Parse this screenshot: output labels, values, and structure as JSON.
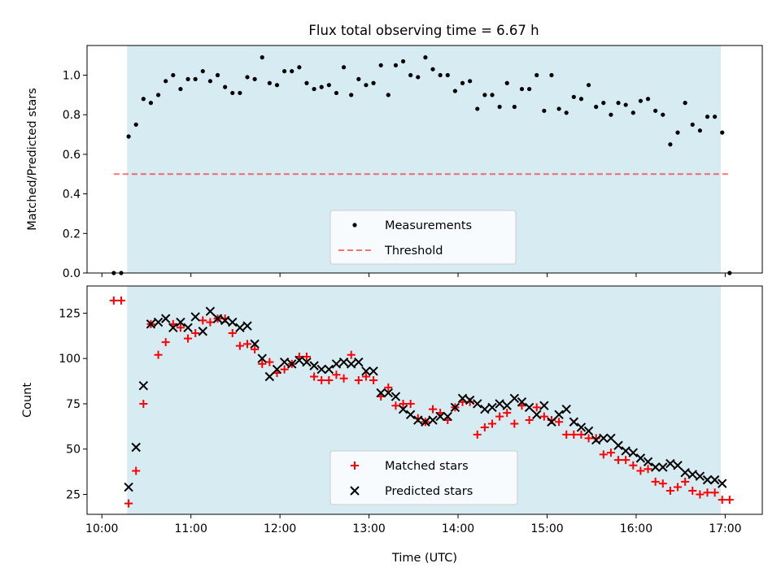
{
  "title": "Flux total observing time = 6.67 h",
  "colors": {
    "shade": "#add8e6",
    "threshold": "#ff0000",
    "matched": "#ff0000",
    "predicted": "#000000",
    "measurements": "#000000"
  },
  "chart_data": [
    {
      "type": "scatter",
      "ylabel": "Matched/Predicted stars",
      "ylim": [
        0,
        1.15
      ],
      "yticks": [
        0.0,
        0.2,
        0.4,
        0.6,
        0.8,
        1.0
      ],
      "ytick_labels": [
        "0.0",
        "0.2",
        "0.4",
        "0.6",
        "0.8",
        "1.0"
      ],
      "xlim": [
        "09:50",
        "17:25"
      ],
      "grid": false,
      "legend_position": "lower-center",
      "shaded_span": [
        "10:17",
        "16:57"
      ],
      "threshold": {
        "name": "Threshold",
        "y": 0.5,
        "x_range": [
          "10:08",
          "17:03"
        ],
        "style": "dashed"
      },
      "series": [
        {
          "name": "Measurements",
          "marker": "dot",
          "points": [
            [
              "10:08",
              0.0
            ],
            [
              "10:13",
              0.0
            ],
            [
              "10:18",
              0.69
            ],
            [
              "10:23",
              0.75
            ],
            [
              "10:28",
              0.88
            ],
            [
              "10:33",
              0.86
            ],
            [
              "10:38",
              0.9
            ],
            [
              "10:43",
              0.97
            ],
            [
              "10:48",
              1.0
            ],
            [
              "10:53",
              0.93
            ],
            [
              "10:58",
              0.98
            ],
            [
              "11:03",
              0.98
            ],
            [
              "11:08",
              1.02
            ],
            [
              "11:13",
              0.97
            ],
            [
              "11:18",
              1.0
            ],
            [
              "11:23",
              0.94
            ],
            [
              "11:28",
              0.91
            ],
            [
              "11:33",
              0.91
            ],
            [
              "11:38",
              0.99
            ],
            [
              "11:43",
              0.98
            ],
            [
              "11:48",
              1.09
            ],
            [
              "11:53",
              0.96
            ],
            [
              "11:58",
              0.95
            ],
            [
              "12:03",
              1.02
            ],
            [
              "12:08",
              1.02
            ],
            [
              "12:13",
              1.04
            ],
            [
              "12:18",
              0.96
            ],
            [
              "12:23",
              0.93
            ],
            [
              "12:28",
              0.94
            ],
            [
              "12:33",
              0.95
            ],
            [
              "12:38",
              0.91
            ],
            [
              "12:43",
              1.04
            ],
            [
              "12:48",
              0.9
            ],
            [
              "12:53",
              0.98
            ],
            [
              "12:58",
              0.95
            ],
            [
              "13:03",
              0.96
            ],
            [
              "13:08",
              1.05
            ],
            [
              "13:13",
              0.9
            ],
            [
              "13:18",
              1.05
            ],
            [
              "13:23",
              1.07
            ],
            [
              "13:28",
              1.0
            ],
            [
              "13:33",
              0.99
            ],
            [
              "13:38",
              1.09
            ],
            [
              "13:43",
              1.03
            ],
            [
              "13:48",
              1.0
            ],
            [
              "13:53",
              1.0
            ],
            [
              "13:58",
              0.92
            ],
            [
              "14:03",
              0.96
            ],
            [
              "14:08",
              0.97
            ],
            [
              "14:13",
              0.83
            ],
            [
              "14:18",
              0.9
            ],
            [
              "14:23",
              0.9
            ],
            [
              "14:28",
              0.84
            ],
            [
              "14:33",
              0.96
            ],
            [
              "14:38",
              0.84
            ],
            [
              "14:43",
              0.93
            ],
            [
              "14:48",
              0.93
            ],
            [
              "14:53",
              1.0
            ],
            [
              "14:58",
              0.82
            ],
            [
              "15:03",
              1.0
            ],
            [
              "15:08",
              0.83
            ],
            [
              "15:13",
              0.81
            ],
            [
              "15:18",
              0.89
            ],
            [
              "15:23",
              0.88
            ],
            [
              "15:28",
              0.95
            ],
            [
              "15:33",
              0.84
            ],
            [
              "15:38",
              0.86
            ],
            [
              "15:43",
              0.8
            ],
            [
              "15:48",
              0.86
            ],
            [
              "15:53",
              0.85
            ],
            [
              "15:58",
              0.81
            ],
            [
              "16:03",
              0.87
            ],
            [
              "16:08",
              0.88
            ],
            [
              "16:13",
              0.82
            ],
            [
              "16:18",
              0.8
            ],
            [
              "16:23",
              0.65
            ],
            [
              "16:28",
              0.71
            ],
            [
              "16:33",
              0.86
            ],
            [
              "16:38",
              0.75
            ],
            [
              "16:43",
              0.72
            ],
            [
              "16:48",
              0.79
            ],
            [
              "16:53",
              0.79
            ],
            [
              "16:58",
              0.71
            ],
            [
              "17:03",
              0.0
            ]
          ]
        }
      ]
    },
    {
      "type": "scatter",
      "ylabel": "Count",
      "xlabel": "Time (UTC)",
      "ylim": [
        14,
        140
      ],
      "yticks": [
        25,
        50,
        75,
        100,
        125
      ],
      "ytick_labels": [
        "25",
        "50",
        "75",
        "100",
        "125"
      ],
      "xlim": [
        "09:50",
        "17:25"
      ],
      "xticks": [
        "10:00",
        "11:00",
        "12:00",
        "13:00",
        "14:00",
        "15:00",
        "16:00",
        "17:00"
      ],
      "xtick_labels": [
        "10:00",
        "11:00",
        "12:00",
        "13:00",
        "14:00",
        "15:00",
        "16:00",
        "17:00"
      ],
      "grid": false,
      "legend_position": "lower-center",
      "shaded_span": [
        "10:17",
        "16:57"
      ],
      "series": [
        {
          "name": "Matched stars",
          "marker": "plus",
          "points": [
            [
              "10:08",
              132
            ],
            [
              "10:13",
              132
            ],
            [
              "10:18",
              20
            ],
            [
              "10:23",
              38
            ],
            [
              "10:28",
              75
            ],
            [
              "10:33",
              119
            ],
            [
              "10:38",
              102
            ],
            [
              "10:43",
              109
            ],
            [
              "10:48",
              119
            ],
            [
              "10:53",
              117
            ],
            [
              "10:58",
              111
            ],
            [
              "11:03",
              114
            ],
            [
              "11:08",
              121
            ],
            [
              "11:13",
              120
            ],
            [
              "11:18",
              122
            ],
            [
              "11:23",
              122
            ],
            [
              "11:28",
              114
            ],
            [
              "11:33",
              107
            ],
            [
              "11:38",
              108
            ],
            [
              "11:43",
              105
            ],
            [
              "11:48",
              97
            ],
            [
              "11:53",
              98
            ],
            [
              "11:58",
              92
            ],
            [
              "12:03",
              94
            ],
            [
              "12:08",
              97
            ],
            [
              "12:13",
              101
            ],
            [
              "12:18",
              101
            ],
            [
              "12:23",
              90
            ],
            [
              "12:28",
              88
            ],
            [
              "12:33",
              88
            ],
            [
              "12:38",
              91
            ],
            [
              "12:43",
              89
            ],
            [
              "12:48",
              102
            ],
            [
              "12:53",
              88
            ],
            [
              "12:58",
              90
            ],
            [
              "13:03",
              88
            ],
            [
              "13:08",
              79
            ],
            [
              "13:13",
              84
            ],
            [
              "13:18",
              74
            ],
            [
              "13:23",
              75
            ],
            [
              "13:28",
              75
            ],
            [
              "13:33",
              67
            ],
            [
              "13:38",
              65
            ],
            [
              "13:43",
              72
            ],
            [
              "13:48",
              70
            ],
            [
              "13:53",
              66
            ],
            [
              "13:58",
              73
            ],
            [
              "14:03",
              76
            ],
            [
              "14:08",
              76
            ],
            [
              "14:13",
              58
            ],
            [
              "14:18",
              62
            ],
            [
              "14:23",
              64
            ],
            [
              "14:28",
              68
            ],
            [
              "14:33",
              70
            ],
            [
              "14:38",
              64
            ],
            [
              "14:43",
              74
            ],
            [
              "14:48",
              66
            ],
            [
              "14:53",
              73
            ],
            [
              "14:58",
              68
            ],
            [
              "15:03",
              66
            ],
            [
              "15:08",
              65
            ],
            [
              "15:13",
              58
            ],
            [
              "15:18",
              58
            ],
            [
              "15:23",
              58
            ],
            [
              "15:28",
              56
            ],
            [
              "15:33",
              56
            ],
            [
              "15:38",
              47
            ],
            [
              "15:43",
              48
            ],
            [
              "15:48",
              44
            ],
            [
              "15:53",
              44
            ],
            [
              "15:58",
              41
            ],
            [
              "16:03",
              38
            ],
            [
              "16:08",
              39
            ],
            [
              "16:13",
              32
            ],
            [
              "16:18",
              31
            ],
            [
              "16:23",
              27
            ],
            [
              "16:28",
              29
            ],
            [
              "16:33",
              32
            ],
            [
              "16:38",
              27
            ],
            [
              "16:43",
              25
            ],
            [
              "16:48",
              26
            ],
            [
              "16:53",
              26
            ],
            [
              "16:58",
              22
            ],
            [
              "17:03",
              22
            ]
          ]
        },
        {
          "name": "Predicted stars",
          "marker": "x",
          "points": [
            [
              "10:18",
              29
            ],
            [
              "10:23",
              51
            ],
            [
              "10:28",
              85
            ],
            [
              "10:33",
              119
            ],
            [
              "10:38",
              120
            ],
            [
              "10:43",
              122
            ],
            [
              "10:48",
              117
            ],
            [
              "10:53",
              120
            ],
            [
              "10:58",
              117
            ],
            [
              "11:03",
              123
            ],
            [
              "11:08",
              115
            ],
            [
              "11:13",
              126
            ],
            [
              "11:18",
              122
            ],
            [
              "11:23",
              121
            ],
            [
              "11:28",
              120
            ],
            [
              "11:33",
              117
            ],
            [
              "11:38",
              118
            ],
            [
              "11:43",
              108
            ],
            [
              "11:48",
              100
            ],
            [
              "11:53",
              90
            ],
            [
              "11:58",
              94
            ],
            [
              "12:03",
              98
            ],
            [
              "12:08",
              97
            ],
            [
              "12:13",
              99
            ],
            [
              "12:18",
              98
            ],
            [
              "12:23",
              96
            ],
            [
              "12:28",
              94
            ],
            [
              "12:33",
              94
            ],
            [
              "12:38",
              97
            ],
            [
              "12:43",
              98
            ],
            [
              "12:48",
              97
            ],
            [
              "12:53",
              98
            ],
            [
              "12:58",
              93
            ],
            [
              "13:03",
              93
            ],
            [
              "13:08",
              81
            ],
            [
              "13:13",
              81
            ],
            [
              "13:18",
              79
            ],
            [
              "13:23",
              72
            ],
            [
              "13:28",
              69
            ],
            [
              "13:33",
              66
            ],
            [
              "13:38",
              65
            ],
            [
              "13:43",
              66
            ],
            [
              "13:48",
              68
            ],
            [
              "13:53",
              68
            ],
            [
              "13:58",
              73
            ],
            [
              "14:03",
              78
            ],
            [
              "14:08",
              77
            ],
            [
              "14:13",
              75
            ],
            [
              "14:18",
              72
            ],
            [
              "14:23",
              73
            ],
            [
              "14:28",
              75
            ],
            [
              "14:33",
              74
            ],
            [
              "14:38",
              78
            ],
            [
              "14:43",
              76
            ],
            [
              "14:48",
              73
            ],
            [
              "14:53",
              69
            ],
            [
              "14:58",
              74
            ],
            [
              "15:03",
              65
            ],
            [
              "15:08",
              69
            ],
            [
              "15:13",
              72
            ],
            [
              "15:18",
              65
            ],
            [
              "15:23",
              62
            ],
            [
              "15:28",
              60
            ],
            [
              "15:33",
              55
            ],
            [
              "15:38",
              56
            ],
            [
              "15:43",
              56
            ],
            [
              "15:48",
              52
            ],
            [
              "15:53",
              49
            ],
            [
              "15:58",
              48
            ],
            [
              "16:03",
              45
            ],
            [
              "16:08",
              43
            ],
            [
              "16:13",
              40
            ],
            [
              "16:18",
              40
            ],
            [
              "16:23",
              42
            ],
            [
              "16:28",
              41
            ],
            [
              "16:33",
              37
            ],
            [
              "16:38",
              36
            ],
            [
              "16:43",
              35
            ],
            [
              "16:48",
              33
            ],
            [
              "16:53",
              33
            ],
            [
              "16:58",
              31
            ]
          ]
        }
      ]
    }
  ]
}
